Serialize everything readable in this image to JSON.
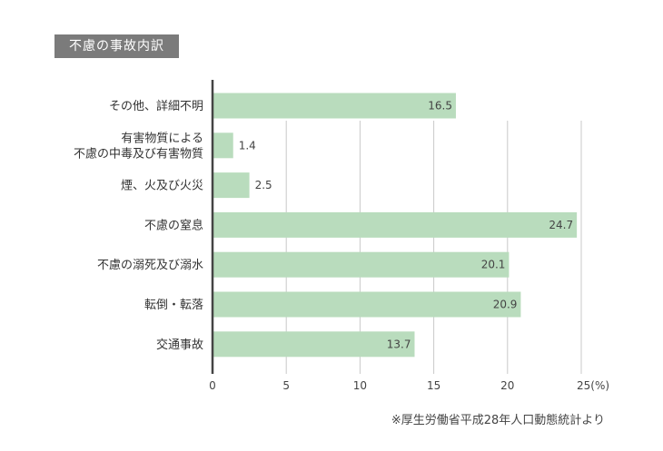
{
  "header": {
    "title": "不慮の事故内訳"
  },
  "source": "※厚生労働省平成28年人口動態統計より",
  "colors": {
    "bar": "#b9dcbd",
    "axis": "#444444",
    "grid": "#c9c9c9",
    "badge": "#7b7b7b"
  },
  "chart_data": {
    "type": "bar",
    "orientation": "horizontal",
    "title": "不慮の事故内訳",
    "categories": [
      [
        "その他、詳細不明"
      ],
      [
        "有害物質による",
        "不慮の中毒及び有害物質"
      ],
      [
        "煙、火及び火災"
      ],
      [
        "不慮の窒息"
      ],
      [
        "不慮の溺死及び溺水"
      ],
      [
        "転倒・転落"
      ],
      [
        "交通事故"
      ]
    ],
    "values": [
      16.5,
      1.4,
      2.5,
      24.7,
      20.1,
      20.9,
      13.7
    ],
    "value_labels": [
      "16.5",
      "1.4",
      "2.5",
      "24.7",
      "20.1",
      "20.9",
      "13.7"
    ],
    "xlim": [
      0,
      25
    ],
    "xticks": [
      "0",
      "5",
      "10",
      "15",
      "20",
      "25(%)"
    ],
    "xlabel": "",
    "ylabel": "",
    "grid": true
  }
}
